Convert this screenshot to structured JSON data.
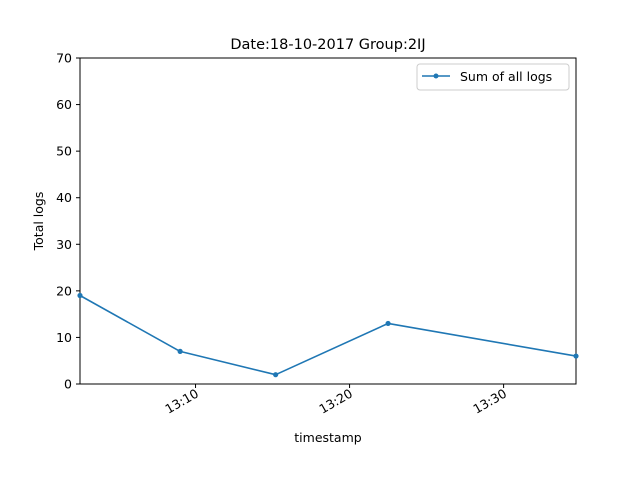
{
  "chart_data": {
    "type": "line",
    "title": "Date:18-10-2017  Group:2IJ",
    "xlabel": "timestamp",
    "ylabel": "Total logs",
    "x_ticks": [
      "13:10",
      "13:20",
      "13:30"
    ],
    "x_tick_minutes": [
      10,
      20,
      30
    ],
    "xlim_minutes": [
      2.5,
      34.7
    ],
    "y_ticks": [
      0,
      10,
      20,
      30,
      40,
      50,
      60,
      70
    ],
    "ylim": [
      0,
      70
    ],
    "grid": false,
    "legend_position": "top-right",
    "series": [
      {
        "name": "Sum of all logs",
        "color": "#1f77b4",
        "marker": "circle",
        "x_minutes": [
          2.5,
          9.0,
          15.2,
          22.5,
          34.7
        ],
        "values": [
          19,
          7,
          2,
          13,
          6
        ]
      }
    ]
  }
}
